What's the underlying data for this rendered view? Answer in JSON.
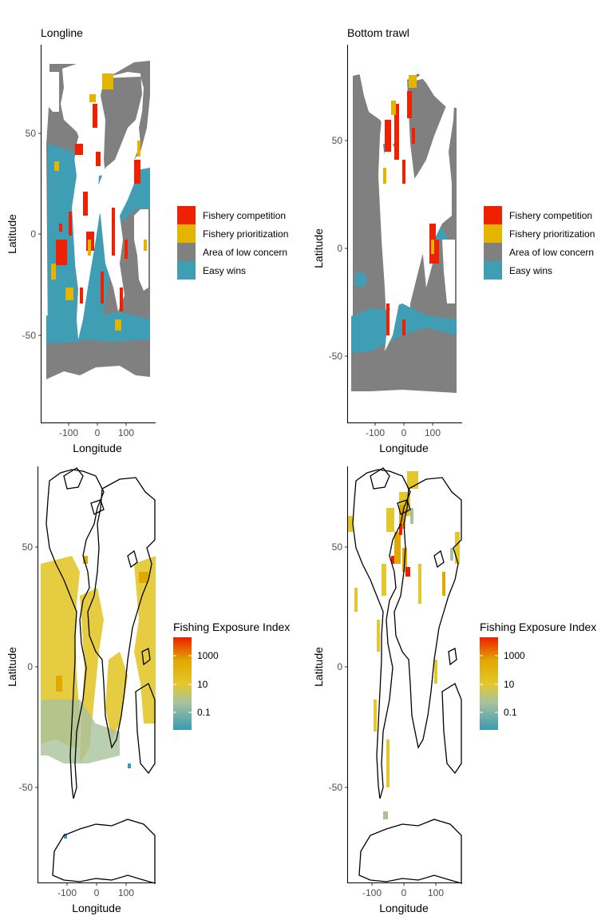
{
  "colors": {
    "fishery_competition": "#ee2200",
    "fishery_prioritization": "#e3b400",
    "area_low_concern": "#808080",
    "easy_wins": "#3f9db4",
    "gradient": [
      "#3a9ab2",
      "#a9c29c",
      "#e3c72c",
      "#e1a800",
      "#ee1f00"
    ]
  },
  "categories": [
    "Fishery competition",
    "Fishery prioritization",
    "Area of low concern",
    "Easy wins"
  ],
  "panels": [
    {
      "title": "Longline",
      "xlabel": "Longitude",
      "ylabel": "Latitude",
      "xticks": [
        "-100",
        "0",
        "100"
      ],
      "yticks": [
        "50",
        "0",
        "-50"
      ]
    },
    {
      "title": "Bottom trawl",
      "xlabel": "Longitude",
      "ylabel": "Latitude",
      "xticks": [
        "-100",
        "0",
        "100"
      ],
      "yticks": [
        "50",
        "0",
        "-50"
      ]
    },
    {
      "title": "",
      "xlabel": "Longitude",
      "ylabel": "Latitude",
      "xticks": [
        "-100",
        "0",
        "100"
      ],
      "yticks": [
        "50",
        "0",
        "-50"
      ],
      "legend_title": "Fishing Exposure Index",
      "legend_labels": [
        "1000",
        "10",
        "0.1"
      ]
    },
    {
      "title": "",
      "xlabel": "Longitude",
      "ylabel": "Latitude",
      "xticks": [
        "-100",
        "0",
        "100"
      ],
      "yticks": [
        "50",
        "0",
        "-50"
      ],
      "legend_title": "Fishing Exposure Index",
      "legend_labels": [
        "1000",
        "10",
        "0.1"
      ]
    }
  ]
}
